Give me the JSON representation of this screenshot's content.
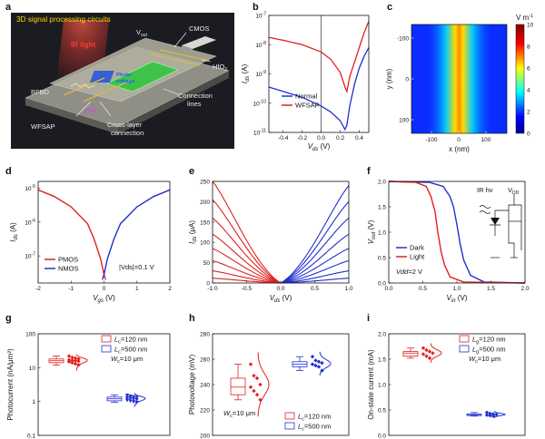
{
  "panels": {
    "a": {
      "label": "a",
      "title": "3D signal processing circuits",
      "labels": {
        "ir_light": "IR light",
        "vout": "V",
        "vout_sub": "out",
        "cmos": "CMOS",
        "hfo2": "HfO",
        "hfo2_sub": "2",
        "photovoltage": "Photo-\nvoltage",
        "bfbd": "BFBD",
        "spp": "SPP",
        "connection_lines": "Connection\nlines",
        "wfsap": "WFSAP",
        "cross_layer": "Cross-layer\nconnection"
      }
    },
    "b": {
      "label": "b"
    },
    "c": {
      "label": "c"
    },
    "d": {
      "label": "d"
    },
    "e": {
      "label": "e"
    },
    "f": {
      "label": "f",
      "inset": {
        "ir": "IR hν",
        "vdd": "V",
        "vdd_sub": "DD"
      }
    },
    "g": {
      "label": "g"
    },
    "h": {
      "label": "h"
    },
    "i": {
      "label": "i"
    }
  },
  "colors": {
    "red": "#e02020",
    "blue": "#2030d0",
    "dark_bg": "#1a1c22"
  },
  "chart_data": [
    {
      "id": "b",
      "type": "line",
      "xlabel": "Vds (V)",
      "ylabel": "Ids (A)",
      "xlim": [
        -0.55,
        0.5
      ],
      "ylim_log": [
        -11,
        -7
      ],
      "xticks": [
        "-0.4",
        "-0.2",
        "0.0",
        "0.2",
        "0.4"
      ],
      "yticks": [
        "10-11",
        "10-10",
        "10-9",
        "10-8",
        "10-7"
      ],
      "series": [
        {
          "name": "Normal",
          "color": "#2030d0",
          "x": [
            -0.55,
            -0.4,
            -0.2,
            0,
            0.1,
            0.2,
            0.25,
            0.27,
            0.3,
            0.35,
            0.4,
            0.45,
            0.5
          ],
          "y_log": [
            -9.45,
            -9.6,
            -9.8,
            -10.1,
            -10.3,
            -10.6,
            -10.9,
            -10.75,
            -10.1,
            -9.35,
            -8.8,
            -8.4,
            -8.1
          ]
        },
        {
          "name": "WFSAP",
          "color": "#e02020",
          "x": [
            -0.55,
            -0.4,
            -0.2,
            0,
            0.1,
            0.2,
            0.25,
            0.27,
            0.3,
            0.35,
            0.4,
            0.45,
            0.5
          ],
          "y_log": [
            -7.75,
            -7.85,
            -8.0,
            -8.25,
            -8.5,
            -8.95,
            -9.45,
            -9.6,
            -9.1,
            -8.6,
            -8.1,
            -7.6,
            -7.2
          ]
        }
      ]
    },
    {
      "id": "c",
      "type": "heatmap",
      "xlabel": "x (nm)",
      "ylabel": "y (nm)",
      "xticks": [
        "-100",
        "0",
        "100"
      ],
      "yticks": [
        "-100",
        "0",
        "100"
      ],
      "colorbar": {
        "label": "V m",
        "label_sup": "-1",
        "range": [
          0,
          10
        ],
        "ticks": [
          "0",
          "2",
          "4",
          "6",
          "8",
          "10"
        ]
      }
    },
    {
      "id": "d",
      "type": "line",
      "xlabel": "Vgs (V)",
      "ylabel": "Ids (A)",
      "xlim": [
        -2,
        2
      ],
      "ylim_log": [
        -7.8,
        -4.8
      ],
      "xticks": [
        "-2",
        "-1",
        "0",
        "1",
        "2"
      ],
      "yticks": [
        "10-7",
        "10-6",
        "10-5"
      ],
      "annotation": "|Vds|=0.1 V",
      "series": [
        {
          "name": "PMOS",
          "color": "#e02020",
          "x": [
            -2,
            -1.5,
            -1,
            -0.5,
            -0.3,
            -0.1,
            0,
            0.05
          ],
          "y_log": [
            -5.05,
            -5.25,
            -5.55,
            -6.05,
            -6.5,
            -7.1,
            -7.55,
            -7.7
          ]
        },
        {
          "name": "NMOS",
          "color": "#2030d0",
          "x": [
            -0.05,
            0,
            0.1,
            0.3,
            0.5,
            1,
            1.5,
            2
          ],
          "y_log": [
            -7.7,
            -7.55,
            -7.1,
            -6.5,
            -6.05,
            -5.55,
            -5.25,
            -5.05
          ]
        }
      ]
    },
    {
      "id": "e",
      "type": "line",
      "xlabel": "Vds (V)",
      "ylabel": "Ids (μA)",
      "xlim": [
        -1,
        1
      ],
      "ylim": [
        0,
        250
      ],
      "xticks": [
        "-1.0",
        "-0.5",
        "0.0",
        "0.5",
        "1.0"
      ],
      "yticks": [
        "0",
        "50",
        "100",
        "150",
        "200",
        "250"
      ],
      "red_endpoints": [
        250,
        205,
        160,
        120,
        85,
        55,
        30,
        12
      ],
      "blue_endpoints": [
        240,
        200,
        160,
        120,
        85,
        55,
        30,
        12
      ]
    },
    {
      "id": "f",
      "type": "line",
      "xlabel": "Vin (V)",
      "ylabel": "Vout (V)",
      "xlim": [
        0,
        2
      ],
      "ylim": [
        0,
        2
      ],
      "xticks": [
        "0.0",
        "0.5",
        "1.0",
        "1.5",
        "2.0"
      ],
      "yticks": [
        "0.0",
        "0.5",
        "1.0",
        "1.5",
        "2.0"
      ],
      "annotation": "Vdd=2 V",
      "series": [
        {
          "name": "Dark",
          "color": "#2030d0",
          "x": [
            0,
            0.6,
            0.8,
            0.9,
            0.95,
            1.0,
            1.05,
            1.1,
            1.2,
            1.4,
            2.0
          ],
          "y": [
            2,
            1.98,
            1.9,
            1.7,
            1.5,
            1.15,
            0.75,
            0.45,
            0.15,
            0.02,
            0
          ]
        },
        {
          "name": "Light",
          "color": "#e02020",
          "x": [
            0,
            0.4,
            0.55,
            0.62,
            0.68,
            0.72,
            0.77,
            0.82,
            0.9,
            1.1,
            2.0
          ],
          "y": [
            2,
            1.98,
            1.9,
            1.7,
            1.4,
            1.0,
            0.6,
            0.35,
            0.12,
            0.02,
            0
          ]
        }
      ]
    },
    {
      "id": "g",
      "type": "scatter",
      "ylabel": "Photocurrent (nA/μm²)",
      "yscale": "log",
      "ylim_log": [
        -1,
        2
      ],
      "yticks": [
        "0.1",
        "1",
        "10",
        "100"
      ],
      "legend_note": "Wc=10 μm",
      "series": [
        {
          "name": "Lc=120 nm",
          "color": "#e02020",
          "values": [
            22,
            20,
            19,
            18,
            17,
            16.5,
            16,
            15.5,
            15,
            14,
            13,
            12
          ]
        },
        {
          "name": "Lc=500 nm",
          "color": "#2030d0",
          "values": [
            1.55,
            1.45,
            1.4,
            1.35,
            1.3,
            1.25,
            1.2,
            1.15,
            1.1,
            1.05,
            1.0,
            0.95
          ]
        }
      ]
    },
    {
      "id": "h",
      "type": "scatter",
      "ylabel": "Photovoltage (mV)",
      "ylim": [
        200,
        280
      ],
      "yticks": [
        "200",
        "220",
        "240",
        "260",
        "280"
      ],
      "legend_note": "Wc=10 μm",
      "series": [
        {
          "name": "Lc=120 nm",
          "color": "#e02020",
          "values": [
            256,
            247,
            245,
            240,
            238,
            235,
            232,
            228
          ]
        },
        {
          "name": "Lc=500 nm",
          "color": "#2030d0",
          "values": [
            262,
            259,
            258,
            257,
            256,
            255,
            254,
            251
          ]
        }
      ]
    },
    {
      "id": "i",
      "type": "scatter",
      "ylabel": "On-state current (mA)",
      "ylim": [
        0,
        2.0
      ],
      "yticks": [
        "0.0",
        "0.5",
        "1.0",
        "1.5",
        "2.0"
      ],
      "legend_note": "Wc=10 μm",
      "series": [
        {
          "name": "Lg=120 nm",
          "color": "#e02020",
          "values": [
            1.72,
            1.68,
            1.65,
            1.62,
            1.6,
            1.56,
            1.52
          ]
        },
        {
          "name": "Lg=500 nm",
          "color": "#2030d0",
          "values": [
            0.45,
            0.43,
            0.42,
            0.41,
            0.4,
            0.39,
            0.38
          ]
        }
      ]
    }
  ]
}
